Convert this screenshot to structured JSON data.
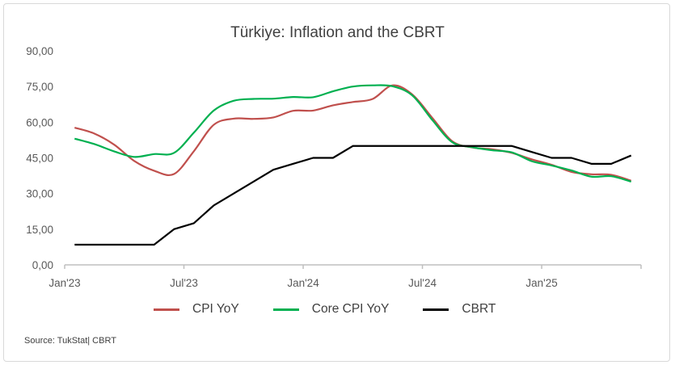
{
  "chart_data": {
    "type": "line",
    "title": "Türkiye: Inflation and the CBRT",
    "xlabel": "",
    "ylabel": "",
    "ylim": [
      0,
      90
    ],
    "yticks": [
      "0,00",
      "15,00",
      "30,00",
      "45,00",
      "60,00",
      "75,00",
      "90,00"
    ],
    "ytick_values": [
      0,
      15,
      30,
      45,
      60,
      75,
      90
    ],
    "xtick_labels": [
      "Jan'23",
      "Jul'23",
      "Jan'24",
      "Jul'24",
      "Jan'25"
    ],
    "xtick_indices": [
      0,
      6,
      12,
      18,
      24
    ],
    "n_points": 29,
    "grid": false,
    "legend_position": "bottom",
    "series": [
      {
        "name": "CPI YoY",
        "color": "#c0504d",
        "values": [
          57.7,
          55.2,
          50.5,
          43.7,
          39.6,
          38.2,
          47.8,
          58.9,
          61.5,
          61.4,
          62.0,
          64.8,
          64.9,
          67.1,
          68.5,
          69.8,
          75.5,
          71.6,
          61.8,
          52.0,
          49.4,
          48.6,
          47.1,
          44.4,
          42.1,
          39.1,
          38.1,
          37.9,
          35.4
        ]
      },
      {
        "name": "Core CPI YoY",
        "color": "#00b050",
        "values": [
          53.1,
          50.8,
          47.7,
          45.4,
          46.6,
          47.1,
          55.6,
          64.9,
          69.0,
          69.8,
          69.9,
          70.6,
          70.5,
          73.0,
          75.0,
          75.5,
          75.1,
          71.2,
          60.9,
          51.6,
          49.5,
          48.2,
          47.3,
          43.6,
          41.8,
          39.7,
          37.1,
          37.3,
          35.0
        ]
      },
      {
        "name": "CBRT",
        "color": "#000000",
        "values": [
          8.5,
          8.5,
          8.5,
          8.5,
          8.5,
          15,
          17.5,
          25,
          30,
          35,
          40,
          42.5,
          45,
          45,
          50,
          50,
          50,
          50,
          50,
          50,
          50,
          50,
          50,
          47.5,
          45,
          45,
          42.5,
          42.5,
          46
        ]
      }
    ]
  },
  "source": "Source: TukStat| CBRT"
}
